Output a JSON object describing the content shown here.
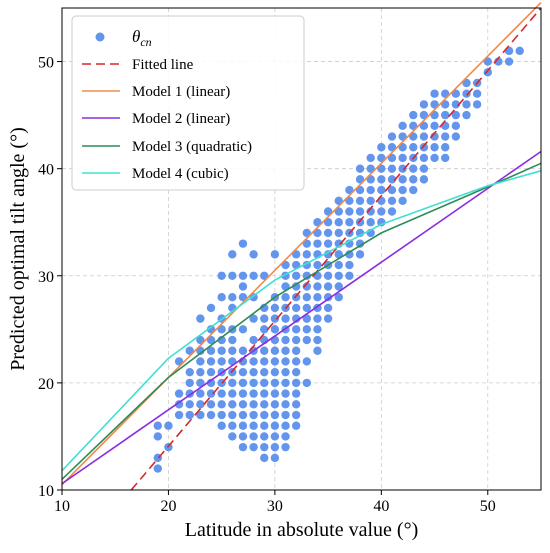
{
  "chart_data": {
    "type": "scatter",
    "title": "",
    "xlabel": "Latitude in absolute value (°)",
    "ylabel": "Predicted optimal tilt angle (°)",
    "xlim": [
      10,
      55
    ],
    "ylim": [
      10,
      55
    ],
    "xticks": [
      10,
      20,
      30,
      40,
      50
    ],
    "yticks": [
      10,
      20,
      30,
      40,
      50
    ],
    "grid": true,
    "legend_position": "upper-left",
    "scatter": {
      "name": "θcn",
      "color": "#6495ED",
      "points": [
        [
          19,
          12
        ],
        [
          19,
          13
        ],
        [
          19,
          15
        ],
        [
          19,
          16
        ],
        [
          20,
          14
        ],
        [
          20,
          16
        ],
        [
          21,
          17
        ],
        [
          21,
          18
        ],
        [
          21,
          19
        ],
        [
          21,
          22
        ],
        [
          22,
          17
        ],
        [
          22,
          18
        ],
        [
          22,
          19
        ],
        [
          22,
          20
        ],
        [
          22,
          21
        ],
        [
          22,
          23
        ],
        [
          23,
          17
        ],
        [
          23,
          18
        ],
        [
          23,
          19
        ],
        [
          23,
          20
        ],
        [
          23,
          21
        ],
        [
          23,
          22
        ],
        [
          23,
          23
        ],
        [
          23,
          24
        ],
        [
          23,
          26
        ],
        [
          24,
          17
        ],
        [
          24,
          18
        ],
        [
          24,
          19
        ],
        [
          24,
          20
        ],
        [
          24,
          21
        ],
        [
          24,
          22
        ],
        [
          24,
          23
        ],
        [
          24,
          24
        ],
        [
          24,
          25
        ],
        [
          24,
          27
        ],
        [
          25,
          16
        ],
        [
          25,
          17
        ],
        [
          25,
          18
        ],
        [
          25,
          19
        ],
        [
          25,
          20
        ],
        [
          25,
          21
        ],
        [
          25,
          22
        ],
        [
          25,
          23
        ],
        [
          25,
          24
        ],
        [
          25,
          25
        ],
        [
          25,
          26
        ],
        [
          25,
          28
        ],
        [
          25,
          30
        ],
        [
          26,
          15
        ],
        [
          26,
          16
        ],
        [
          26,
          17
        ],
        [
          26,
          18
        ],
        [
          26,
          19
        ],
        [
          26,
          20
        ],
        [
          26,
          21
        ],
        [
          26,
          22
        ],
        [
          26,
          23
        ],
        [
          26,
          24
        ],
        [
          26,
          25
        ],
        [
          26,
          27
        ],
        [
          26,
          28
        ],
        [
          26,
          30
        ],
        [
          26,
          32
        ],
        [
          27,
          14
        ],
        [
          27,
          15
        ],
        [
          27,
          16
        ],
        [
          27,
          17
        ],
        [
          27,
          18
        ],
        [
          27,
          19
        ],
        [
          27,
          20
        ],
        [
          27,
          21
        ],
        [
          27,
          22
        ],
        [
          27,
          23
        ],
        [
          27,
          25
        ],
        [
          27,
          28
        ],
        [
          27,
          29
        ],
        [
          27,
          30
        ],
        [
          27,
          33
        ],
        [
          28,
          14
        ],
        [
          28,
          15
        ],
        [
          28,
          16
        ],
        [
          28,
          17
        ],
        [
          28,
          18
        ],
        [
          28,
          19
        ],
        [
          28,
          20
        ],
        [
          28,
          21
        ],
        [
          28,
          22
        ],
        [
          28,
          23
        ],
        [
          28,
          24
        ],
        [
          28,
          26
        ],
        [
          28,
          28
        ],
        [
          28,
          30
        ],
        [
          28,
          32
        ],
        [
          29,
          13
        ],
        [
          29,
          14
        ],
        [
          29,
          15
        ],
        [
          29,
          16
        ],
        [
          29,
          17
        ],
        [
          29,
          18
        ],
        [
          29,
          19
        ],
        [
          29,
          20
        ],
        [
          29,
          21
        ],
        [
          29,
          22
        ],
        [
          29,
          23
        ],
        [
          29,
          24
        ],
        [
          29,
          25
        ],
        [
          29,
          26
        ],
        [
          29,
          27
        ],
        [
          29,
          30
        ],
        [
          30,
          13
        ],
        [
          30,
          14
        ],
        [
          30,
          15
        ],
        [
          30,
          16
        ],
        [
          30,
          17
        ],
        [
          30,
          18
        ],
        [
          30,
          19
        ],
        [
          30,
          20
        ],
        [
          30,
          21
        ],
        [
          30,
          22
        ],
        [
          30,
          23
        ],
        [
          30,
          24
        ],
        [
          30,
          25
        ],
        [
          30,
          26
        ],
        [
          30,
          27
        ],
        [
          30,
          28
        ],
        [
          30,
          32
        ],
        [
          31,
          14
        ],
        [
          31,
          15
        ],
        [
          31,
          16
        ],
        [
          31,
          17
        ],
        [
          31,
          18
        ],
        [
          31,
          19
        ],
        [
          31,
          20
        ],
        [
          31,
          21
        ],
        [
          31,
          22
        ],
        [
          31,
          23
        ],
        [
          31,
          24
        ],
        [
          31,
          25
        ],
        [
          31,
          26
        ],
        [
          31,
          27
        ],
        [
          31,
          28
        ],
        [
          31,
          29
        ],
        [
          31,
          30
        ],
        [
          31,
          31
        ],
        [
          32,
          16
        ],
        [
          32,
          17
        ],
        [
          32,
          18
        ],
        [
          32,
          19
        ],
        [
          32,
          20
        ],
        [
          32,
          21
        ],
        [
          32,
          22
        ],
        [
          32,
          23
        ],
        [
          32,
          24
        ],
        [
          32,
          25
        ],
        [
          32,
          26
        ],
        [
          32,
          27
        ],
        [
          32,
          28
        ],
        [
          32,
          29
        ],
        [
          32,
          30
        ],
        [
          32,
          31
        ],
        [
          32,
          32
        ],
        [
          33,
          20
        ],
        [
          33,
          22
        ],
        [
          33,
          24
        ],
        [
          33,
          25
        ],
        [
          33,
          26
        ],
        [
          33,
          27
        ],
        [
          33,
          28
        ],
        [
          33,
          29
        ],
        [
          33,
          30
        ],
        [
          33,
          31
        ],
        [
          33,
          32
        ],
        [
          33,
          33
        ],
        [
          33,
          34
        ],
        [
          34,
          23
        ],
        [
          34,
          24
        ],
        [
          34,
          25
        ],
        [
          34,
          26
        ],
        [
          34,
          27
        ],
        [
          34,
          28
        ],
        [
          34,
          29
        ],
        [
          34,
          30
        ],
        [
          34,
          31
        ],
        [
          34,
          32
        ],
        [
          34,
          33
        ],
        [
          34,
          34
        ],
        [
          34,
          35
        ],
        [
          35,
          26
        ],
        [
          35,
          27
        ],
        [
          35,
          28
        ],
        [
          35,
          29
        ],
        [
          35,
          30
        ],
        [
          35,
          31
        ],
        [
          35,
          32
        ],
        [
          35,
          33
        ],
        [
          35,
          34
        ],
        [
          35,
          35
        ],
        [
          35,
          36
        ],
        [
          36,
          28
        ],
        [
          36,
          29
        ],
        [
          36,
          30
        ],
        [
          36,
          31
        ],
        [
          36,
          32
        ],
        [
          36,
          33
        ],
        [
          36,
          34
        ],
        [
          36,
          35
        ],
        [
          36,
          36
        ],
        [
          36,
          37
        ],
        [
          37,
          30
        ],
        [
          37,
          31
        ],
        [
          37,
          32
        ],
        [
          37,
          33
        ],
        [
          37,
          34
        ],
        [
          37,
          35
        ],
        [
          37,
          36
        ],
        [
          37,
          37
        ],
        [
          37,
          38
        ],
        [
          38,
          32
        ],
        [
          38,
          33
        ],
        [
          38,
          34
        ],
        [
          38,
          35
        ],
        [
          38,
          36
        ],
        [
          38,
          37
        ],
        [
          38,
          38
        ],
        [
          38,
          39
        ],
        [
          38,
          40
        ],
        [
          39,
          34
        ],
        [
          39,
          35
        ],
        [
          39,
          36
        ],
        [
          39,
          37
        ],
        [
          39,
          38
        ],
        [
          39,
          39
        ],
        [
          39,
          40
        ],
        [
          39,
          41
        ],
        [
          40,
          35
        ],
        [
          40,
          36
        ],
        [
          40,
          37
        ],
        [
          40,
          38
        ],
        [
          40,
          39
        ],
        [
          40,
          40
        ],
        [
          40,
          41
        ],
        [
          40,
          42
        ],
        [
          41,
          36
        ],
        [
          41,
          37
        ],
        [
          41,
          38
        ],
        [
          41,
          39
        ],
        [
          41,
          40
        ],
        [
          41,
          41
        ],
        [
          41,
          42
        ],
        [
          41,
          43
        ],
        [
          42,
          37
        ],
        [
          42,
          38
        ],
        [
          42,
          39
        ],
        [
          42,
          40
        ],
        [
          42,
          41
        ],
        [
          42,
          42
        ],
        [
          42,
          43
        ],
        [
          42,
          44
        ],
        [
          43,
          38
        ],
        [
          43,
          39
        ],
        [
          43,
          40
        ],
        [
          43,
          41
        ],
        [
          43,
          42
        ],
        [
          43,
          43
        ],
        [
          43,
          44
        ],
        [
          43,
          45
        ],
        [
          44,
          39
        ],
        [
          44,
          40
        ],
        [
          44,
          41
        ],
        [
          44,
          42
        ],
        [
          44,
          43
        ],
        [
          44,
          44
        ],
        [
          44,
          45
        ],
        [
          44,
          46
        ],
        [
          45,
          41
        ],
        [
          45,
          42
        ],
        [
          45,
          43
        ],
        [
          45,
          44
        ],
        [
          45,
          45
        ],
        [
          45,
          46
        ],
        [
          45,
          47
        ],
        [
          46,
          41
        ],
        [
          46,
          42
        ],
        [
          46,
          43
        ],
        [
          46,
          44
        ],
        [
          46,
          45
        ],
        [
          46,
          46
        ],
        [
          46,
          47
        ],
        [
          47,
          43
        ],
        [
          47,
          44
        ],
        [
          47,
          45
        ],
        [
          47,
          46
        ],
        [
          47,
          47
        ],
        [
          48,
          45
        ],
        [
          48,
          46
        ],
        [
          48,
          47
        ],
        [
          48,
          48
        ],
        [
          49,
          46
        ],
        [
          49,
          47
        ],
        [
          49,
          48
        ],
        [
          50,
          49
        ],
        [
          50,
          50
        ],
        [
          51,
          50
        ],
        [
          52,
          50
        ],
        [
          52,
          51
        ],
        [
          53,
          51
        ]
      ]
    },
    "series": [
      {
        "name": "Fitted line",
        "style": "dashed",
        "color": "#D62728",
        "x": [
          16.5,
          55
        ],
        "y": [
          10,
          55
        ]
      },
      {
        "name": "Model 1 (linear)",
        "style": "solid",
        "color": "#F08A4B",
        "x": [
          10,
          55
        ],
        "y": [
          10.5,
          55.5
        ]
      },
      {
        "name": "Model 2 (linear)",
        "style": "solid",
        "color": "#8A2BE2",
        "x": [
          10,
          55
        ],
        "y": [
          10.6,
          41.6
        ]
      },
      {
        "name": "Model 3 (quadratic)",
        "style": "solid",
        "color": "#2E8B57",
        "x": [
          10,
          20,
          30,
          40,
          50,
          55
        ],
        "y": [
          11.0,
          20.5,
          28.0,
          34.0,
          38.3,
          40.5
        ]
      },
      {
        "name": "Model 4 (cubic)",
        "style": "solid",
        "color": "#40E0D0",
        "x": [
          10,
          20,
          30,
          40,
          50,
          55
        ],
        "y": [
          11.8,
          22.3,
          29.6,
          34.8,
          38.4,
          39.8
        ]
      }
    ],
    "legend": [
      {
        "label_main": "θ",
        "label_sub": "cn",
        "kind": "marker",
        "color": "#6495ED"
      },
      {
        "label": "Fitted line",
        "kind": "dashed",
        "color": "#D62728"
      },
      {
        "label": "Model 1 (linear)",
        "kind": "line",
        "color": "#F08A4B"
      },
      {
        "label": "Model 2 (linear)",
        "kind": "line",
        "color": "#8A2BE2"
      },
      {
        "label": "Model 3 (quadratic)",
        "kind": "line",
        "color": "#2E8B57"
      },
      {
        "label": "Model 4 (cubic)",
        "kind": "line",
        "color": "#40E0D0"
      }
    ]
  }
}
